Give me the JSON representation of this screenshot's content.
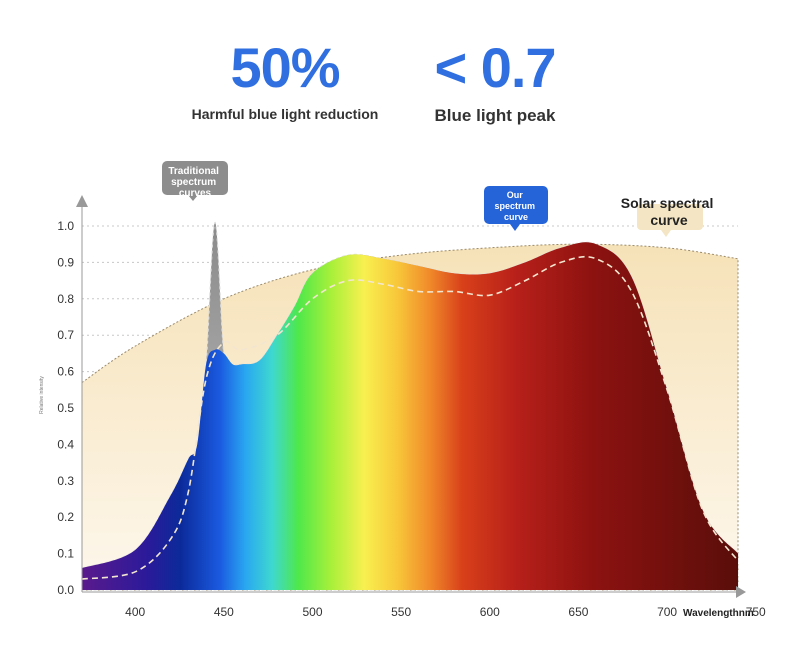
{
  "stats": [
    {
      "value": "50%",
      "caption": "Harmful blue light reduction"
    },
    {
      "value": "< 0.7",
      "caption": "Blue light peak"
    }
  ],
  "colors": {
    "accent": "#2f6fe0",
    "solar_fill": "#f7e7c6",
    "traditional": "#9a9a9a",
    "our_badge": "#2563d8"
  },
  "chart_data": {
    "type": "area",
    "title": "",
    "xlabel": "Wavelengthnm",
    "ylabel": "Relative intensity",
    "xlim": [
      370,
      740
    ],
    "ylim": [
      0,
      1.0
    ],
    "x_ticks": [
      400,
      450,
      500,
      550,
      600,
      650,
      700,
      750
    ],
    "y_ticks": [
      0.0,
      0.1,
      0.2,
      0.3,
      0.4,
      0.5,
      0.6,
      0.7,
      0.8,
      0.9,
      1.0
    ],
    "grid": true,
    "annotations": [
      {
        "text": "Traditional spectrum curves",
        "series": "Traditional spectrum curves"
      },
      {
        "text": "Our spectrum curve",
        "series": "Our spectrum curve"
      },
      {
        "text": "Solar spectral curve",
        "series": "Solar spectral curve"
      }
    ],
    "series": [
      {
        "name": "Solar spectral curve",
        "x": [
          370,
          400,
          450,
          500,
          550,
          600,
          650,
          700,
          740
        ],
        "values": [
          0.57,
          0.67,
          0.8,
          0.88,
          0.92,
          0.94,
          0.95,
          0.94,
          0.91
        ]
      },
      {
        "name": "Traditional spectrum curves",
        "x": [
          370,
          400,
          420,
          430,
          435,
          440,
          445,
          450,
          455,
          460,
          470,
          480,
          490,
          500,
          520,
          540,
          560,
          580,
          600,
          620,
          640,
          660,
          680,
          700,
          720,
          740
        ],
        "values": [
          0.06,
          0.11,
          0.26,
          0.36,
          0.4,
          0.62,
          1.01,
          0.65,
          0.62,
          0.62,
          0.63,
          0.7,
          0.78,
          0.87,
          0.92,
          0.91,
          0.89,
          0.87,
          0.87,
          0.9,
          0.94,
          0.95,
          0.86,
          0.55,
          0.22,
          0.1
        ]
      },
      {
        "name": "Our spectrum curve",
        "x": [
          370,
          400,
          420,
          430,
          440,
          450,
          460,
          480,
          500,
          520,
          540,
          560,
          580,
          600,
          620,
          640,
          660,
          680,
          700,
          720,
          740
        ],
        "values": [
          0.03,
          0.05,
          0.14,
          0.27,
          0.58,
          0.68,
          0.66,
          0.7,
          0.8,
          0.85,
          0.84,
          0.82,
          0.82,
          0.81,
          0.85,
          0.9,
          0.91,
          0.82,
          0.55,
          0.22,
          0.08
        ]
      }
    ]
  }
}
